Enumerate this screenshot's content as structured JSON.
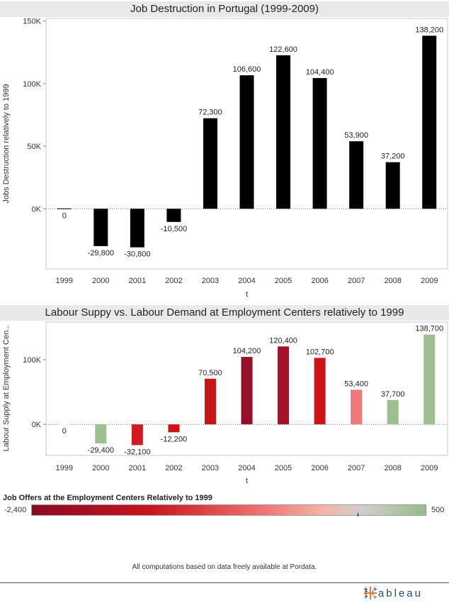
{
  "chart_data": [
    {
      "type": "bar",
      "title": "Job Destruction in Portugal (1999-2009)",
      "xlabel": "t",
      "ylabel": "Jobs Destruction relatively to 1999",
      "categories": [
        "1999",
        "2000",
        "2001",
        "2002",
        "2003",
        "2004",
        "2005",
        "2006",
        "2007",
        "2008",
        "2009"
      ],
      "values": [
        0,
        -29800,
        -30800,
        -10500,
        72300,
        106600,
        122600,
        104400,
        53900,
        37200,
        138200
      ],
      "value_labels": [
        "0",
        "-29,800",
        "-30,800",
        "-10,500",
        "72,300",
        "106,600",
        "122,600",
        "104,400",
        "53,900",
        "37,200",
        "138,200"
      ],
      "yticks": [
        0,
        50000,
        100000,
        150000
      ],
      "ytick_labels": [
        "0K",
        "50K",
        "100K",
        "150K"
      ],
      "ylim": [
        -48000,
        152000
      ],
      "bar_color": "#000000",
      "grid": false
    },
    {
      "type": "bar",
      "title": "Labour Suppy vs. Labour Demand at Employment Centers relatively to 1999",
      "xlabel": "t",
      "ylabel": "Labour Supply at Employment Cen..",
      "categories": [
        "1999",
        "2000",
        "2001",
        "2002",
        "2003",
        "2004",
        "2005",
        "2006",
        "2007",
        "2008",
        "2009"
      ],
      "values": [
        0,
        -29400,
        -32100,
        -12200,
        70500,
        104200,
        120400,
        102700,
        53400,
        37700,
        138700
      ],
      "value_labels": [
        "0",
        "-29,400",
        "-32,100",
        "-12,200",
        "70,500",
        "104,200",
        "120,400",
        "102,700",
        "53,400",
        "37,700",
        "138,700"
      ],
      "colors": [
        "#ffffff",
        "#9ec08e",
        "#d01c20",
        "#cc1418",
        "#c41618",
        "#97102a",
        "#a3122a",
        "#cc1418",
        "#f07878",
        "#9ec08e",
        "#9ec08e"
      ],
      "yticks": [
        0,
        100000
      ],
      "ytick_labels": [
        "0K",
        "100K"
      ],
      "ylim": [
        -48000,
        158000
      ],
      "grid": false
    }
  ],
  "legend": {
    "title": "Job Offers at the Employment Centers Relatively to 1999",
    "min_label": "-2,400",
    "max_label": "500",
    "gradient": [
      "#8c0a24",
      "#c8141e",
      "#f07070",
      "#cfcfcf",
      "#98bc88"
    ]
  },
  "footer": {
    "note": "All computations based on data freely available at Pordata.",
    "brand": "t+ableau",
    "brand_icon": "tableau-cross-icon"
  }
}
